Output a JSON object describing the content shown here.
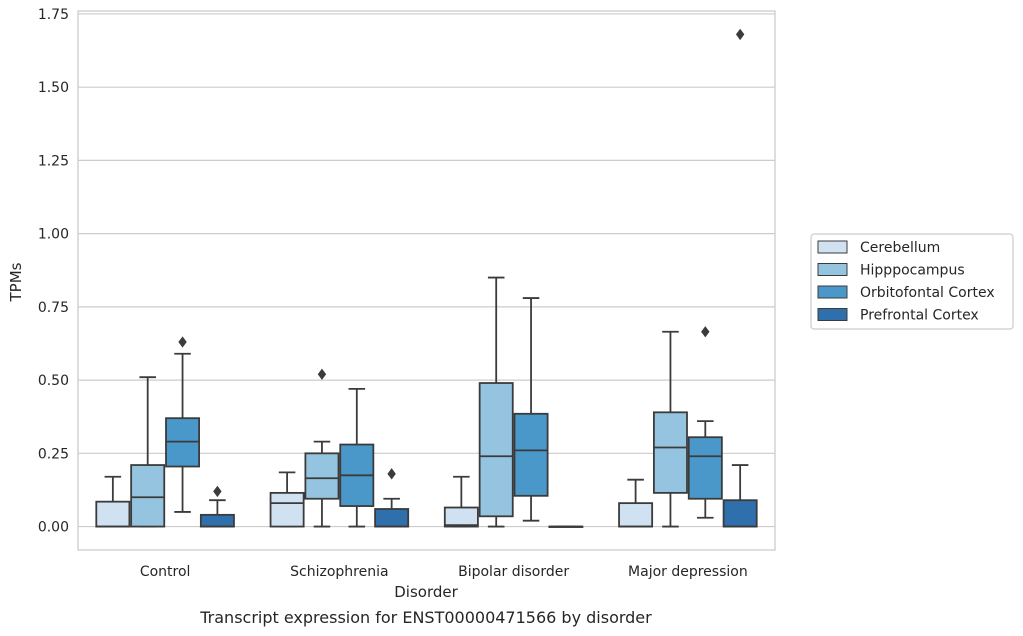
{
  "chart_data": {
    "type": "box",
    "caption": "Transcript expression for ENST00000471566 by disorder",
    "xlabel": "Disorder",
    "ylabel": "TPMs",
    "ylim": [
      -0.08,
      1.76
    ],
    "yticks": [
      "0.00",
      "0.25",
      "0.50",
      "0.75",
      "1.00",
      "1.25",
      "1.50",
      "1.75"
    ],
    "ytick_values": [
      0,
      0.25,
      0.5,
      0.75,
      1.0,
      1.25,
      1.5,
      1.75
    ],
    "grid": "horizontal",
    "legend_position": "right",
    "categories": [
      "Control",
      "Schizophrenia",
      "Bipolar disorder",
      "Major depression"
    ],
    "series": [
      {
        "name": "Cerebellum",
        "color": "#d0e1f2",
        "boxes": [
          {
            "whislo": 0,
            "q1": 0,
            "med": 0,
            "q3": 0.085,
            "whishi": 0.17,
            "fliers": []
          },
          {
            "whislo": 0,
            "q1": 0,
            "med": 0.08,
            "q3": 0.115,
            "whishi": 0.185,
            "fliers": []
          },
          {
            "whislo": 0,
            "q1": 0,
            "med": 0.005,
            "q3": 0.065,
            "whishi": 0.17,
            "fliers": []
          },
          {
            "whislo": 0,
            "q1": 0,
            "med": 0,
            "q3": 0.08,
            "whishi": 0.16,
            "fliers": []
          }
        ]
      },
      {
        "name": "Hipppocampus",
        "color": "#94c4df",
        "boxes": [
          {
            "whislo": 0,
            "q1": 0,
            "med": 0.1,
            "q3": 0.21,
            "whishi": 0.51,
            "fliers": []
          },
          {
            "whislo": 0,
            "q1": 0.095,
            "med": 0.165,
            "q3": 0.25,
            "whishi": 0.29,
            "fliers": [
              0.52
            ]
          },
          {
            "whislo": 0,
            "q1": 0.035,
            "med": 0.24,
            "q3": 0.49,
            "whishi": 0.85,
            "fliers": []
          },
          {
            "whislo": 0,
            "q1": 0.115,
            "med": 0.27,
            "q3": 0.39,
            "whishi": 0.665,
            "fliers": []
          }
        ]
      },
      {
        "name": "Orbitofontal Cortex",
        "color": "#4a98c9",
        "boxes": [
          {
            "whislo": 0.05,
            "q1": 0.205,
            "med": 0.29,
            "q3": 0.37,
            "whishi": 0.59,
            "fliers": [
              0.63
            ]
          },
          {
            "whislo": 0,
            "q1": 0.07,
            "med": 0.175,
            "q3": 0.28,
            "whishi": 0.47,
            "fliers": []
          },
          {
            "whislo": 0.02,
            "q1": 0.105,
            "med": 0.26,
            "q3": 0.385,
            "whishi": 0.78,
            "fliers": []
          },
          {
            "whislo": 0.03,
            "q1": 0.095,
            "med": 0.24,
            "q3": 0.305,
            "whishi": 0.36,
            "fliers": [
              0.665
            ]
          }
        ]
      },
      {
        "name": "Prefrontal Cortex",
        "color": "#2e6fac",
        "boxes": [
          {
            "whislo": 0,
            "q1": 0,
            "med": 0,
            "q3": 0.04,
            "whishi": 0.09,
            "fliers": [
              0.12
            ]
          },
          {
            "whislo": 0,
            "q1": 0,
            "med": 0,
            "q3": 0.06,
            "whishi": 0.095,
            "fliers": [
              0.18
            ]
          },
          {
            "whislo": 0,
            "q1": 0,
            "med": 0,
            "q3": 0,
            "whishi": 0,
            "fliers": []
          },
          {
            "whislo": 0,
            "q1": 0,
            "med": 0,
            "q3": 0.09,
            "whishi": 0.21,
            "fliers": [
              1.68
            ]
          }
        ]
      }
    ]
  }
}
